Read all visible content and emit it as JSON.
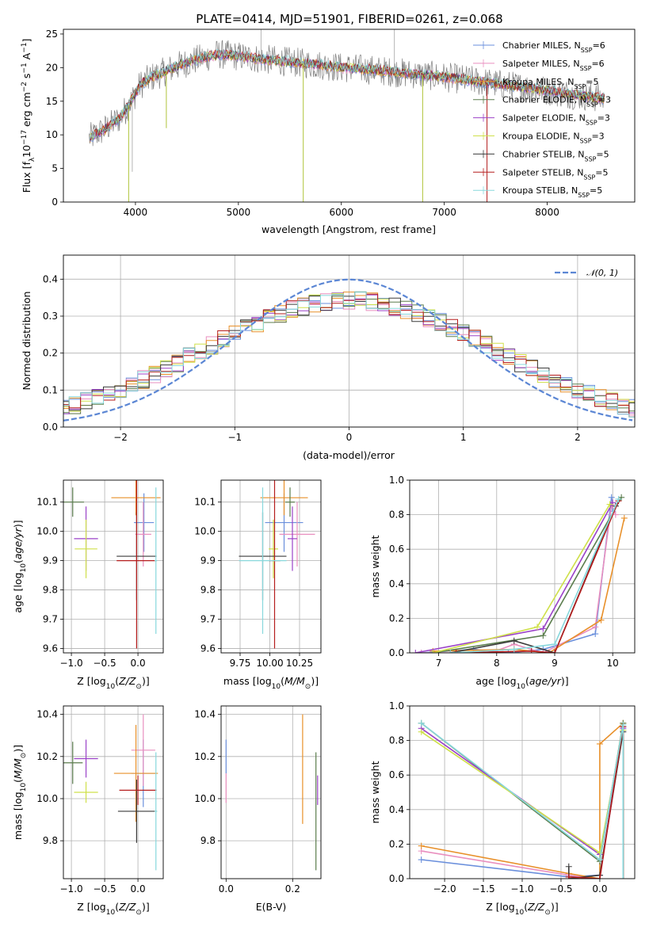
{
  "figure": {
    "title": "PLATE=0414, MJD=51901, FIBERID=0261, z=0.068"
  },
  "colors": {
    "series": [
      "#6a8fdc",
      "#e98fbf",
      "#e8902a",
      "#5b7d4d",
      "#9b42c8",
      "#cfe04a",
      "#3b3b3b",
      "#b51d1d",
      "#88d8dc"
    ],
    "gaussian": "#5b86d4",
    "grid": "#b0b0b0",
    "raw": "#7f7f7f"
  },
  "chart_data": [
    {
      "id": "spectrum",
      "type": "line",
      "xlabel": "wavelength [Angstrom, rest frame]",
      "ylabel": "Flux [f_λ10^-17 erg cm^-2 s^-1 A^-1]",
      "xlim": [
        3300,
        8850
      ],
      "ylim": [
        0,
        25.7
      ],
      "xticks": [
        4000,
        5000,
        6000,
        7000,
        8000
      ],
      "yticks": [
        0,
        5,
        10,
        15,
        20,
        25
      ],
      "legend_position": "top-right",
      "legend": [
        "Chabrier MILES, N_SSP=6",
        "Salpeter MILES, N_SSP=6",
        "Kroupa MILES, N_SSP=5",
        "Chabrier ELODIE, N_SSP=3",
        "Salpeter ELODIE, N_SSP=3",
        "Kroupa ELODIE, N_SSP=3",
        "Chabrier STELIB, N_SSP=5",
        "Salpeter STELIB, N_SSP=5",
        "Kroupa STELIB, N_SSP=5"
      ],
      "continuum": {
        "x": [
          3550,
          3700,
          3850,
          3950,
          4050,
          4150,
          4300,
          4450,
          4600,
          4800,
          5000,
          5200,
          5400,
          5600,
          5800,
          6000,
          6200,
          6400,
          6600,
          6800,
          7000,
          7200,
          7400,
          7600,
          7800,
          8000,
          8200,
          8400,
          8600
        ],
        "y": [
          9.5,
          10.8,
          12.5,
          14.8,
          17.5,
          18.5,
          19.5,
          20.5,
          21.2,
          22.0,
          21.7,
          21.3,
          21.0,
          20.7,
          20.4,
          20.0,
          19.8,
          19.5,
          19.2,
          18.9,
          18.6,
          18.2,
          17.8,
          17.4,
          17.0,
          16.6,
          16.1,
          15.7,
          15.3
        ]
      },
      "spikes": [
        {
          "x": 3934,
          "y": 0
        },
        {
          "x": 3969,
          "y": 4.5
        },
        {
          "x": 4300,
          "y": 11
        },
        {
          "x": 5220,
          "y": 25.7
        },
        {
          "x": 5630,
          "y": 0
        },
        {
          "x": 6515,
          "y": 25.7
        },
        {
          "x": 6790,
          "y": 0
        },
        {
          "x": 7415,
          "y": 0
        }
      ]
    },
    {
      "id": "residuals",
      "type": "histogram",
      "xlabel": "(data-model)/error",
      "ylabel": "Normed distribution",
      "xlim": [
        -2.5,
        2.5
      ],
      "ylim": [
        0,
        0.465
      ],
      "xticks": [
        -2,
        -1,
        0,
        1,
        2
      ],
      "yticks": [
        0.0,
        0.1,
        0.2,
        0.3,
        0.4
      ],
      "bin_width": 0.1,
      "gaussian": {
        "label": "𝒩(0, 1)",
        "mean": 0,
        "sigma": 1
      }
    },
    {
      "id": "age-vs-Z",
      "type": "scatter",
      "xlabel": "Z [log10(Z/Z☉)]",
      "ylabel": "age [log10(age/yr)]",
      "xlim": [
        -1.12,
        0.38
      ],
      "ylim": [
        9.585,
        10.175
      ],
      "xticks": [
        -1.0,
        -0.5,
        0.0
      ],
      "yticks": [
        9.6,
        9.7,
        9.8,
        9.9,
        10.0,
        10.1
      ],
      "points": [
        {
          "x": 0.09,
          "y": 10.03,
          "xerr": 0.15,
          "yerr": 0.1
        },
        {
          "x": 0.08,
          "y": 9.99,
          "xerr": 0.12,
          "yerr": 0.11
        },
        {
          "x": -0.03,
          "y": 10.115,
          "xerr": 0.37,
          "yerr": 0.06
        },
        {
          "x": -0.98,
          "y": 10.1,
          "xerr": 0.17,
          "yerr": 0.05
        },
        {
          "x": -0.78,
          "y": 9.975,
          "xerr": 0.18,
          "yerr": 0.11
        },
        {
          "x": -0.78,
          "y": 9.94,
          "xerr": 0.17,
          "yerr": 0.1
        },
        {
          "x": -0.02,
          "y": 9.915,
          "xerr": 0.3,
          "yerr": 0.15
        },
        {
          "x": -0.02,
          "y": 9.9,
          "xerr": 0.3,
          "yerr": 0.3
        },
        {
          "x": 0.27,
          "y": 9.9,
          "xerr": 0.02,
          "yerr": 0.25
        }
      ]
    },
    {
      "id": "age-vs-mass",
      "type": "scatter",
      "xlabel": "mass [log10(M/M☉)]",
      "ylabel": "",
      "xlim": [
        9.59,
        10.43
      ],
      "ylim": [
        9.585,
        10.175
      ],
      "xticks": [
        9.75,
        10.0,
        10.25
      ],
      "xticklabels": [
        "9.75",
        "10.00",
        "10.25"
      ],
      "yticks": [
        9.6,
        9.7,
        9.8,
        9.9,
        10.0,
        10.1
      ],
      "points": [
        {
          "x": 10.12,
          "y": 10.03,
          "xerr": 0.16,
          "yerr": 0.1
        },
        {
          "x": 10.23,
          "y": 9.99,
          "xerr": 0.15,
          "yerr": 0.11
        },
        {
          "x": 10.12,
          "y": 10.115,
          "xerr": 0.2,
          "yerr": 0.06
        },
        {
          "x": 10.17,
          "y": 10.1,
          "xerr": 0.04,
          "yerr": 0.05
        },
        {
          "x": 10.19,
          "y": 9.975,
          "xerr": 0.04,
          "yerr": 0.11
        },
        {
          "x": 10.03,
          "y": 9.94,
          "xerr": 0.04,
          "yerr": 0.1
        },
        {
          "x": 9.94,
          "y": 9.915,
          "xerr": 0.2,
          "yerr": 0.15
        },
        {
          "x": 10.04,
          "y": 9.9,
          "xerr": 0.05,
          "yerr": 0.3
        },
        {
          "x": 9.94,
          "y": 9.9,
          "xerr": 0.2,
          "yerr": 0.25
        }
      ]
    },
    {
      "id": "weight-vs-age",
      "type": "line",
      "xlabel": "age [log10(age/yr)]",
      "ylabel": "mass weight",
      "xlim": [
        6.5,
        10.38
      ],
      "ylim": [
        0,
        1.0
      ],
      "xticks": [
        7,
        8,
        9,
        10
      ],
      "yticks": [
        0.0,
        0.2,
        0.4,
        0.6,
        0.8,
        1.0
      ],
      "series": [
        {
          "x": [
            6.7,
            7.6,
            8.2,
            8.8,
            9.7,
            9.98,
            10.0
          ],
          "y": [
            0.0,
            0.02,
            0.0,
            0.02,
            0.11,
            0.9,
            0.82
          ]
        },
        {
          "x": [
            6.7,
            7.9,
            8.3,
            8.8,
            9.7,
            9.98,
            10.05
          ],
          "y": [
            0.0,
            0.0,
            0.05,
            0.0,
            0.15,
            0.86,
            0.8
          ]
        },
        {
          "x": [
            6.9,
            8.3,
            8.9,
            9.8,
            10.2
          ],
          "y": [
            0.01,
            0.02,
            0.0,
            0.19,
            0.78
          ]
        },
        {
          "x": [
            6.9,
            8.8,
            10.15
          ],
          "y": [
            0.0,
            0.1,
            0.9
          ]
        },
        {
          "x": [
            6.6,
            8.8,
            10.0
          ],
          "y": [
            0.0,
            0.14,
            0.87
          ]
        },
        {
          "x": [
            6.9,
            8.7,
            9.95
          ],
          "y": [
            0.0,
            0.15,
            0.86
          ]
        },
        {
          "x": [
            7.2,
            8.3,
            9.0,
            10.05
          ],
          "y": [
            0.0,
            0.07,
            0.0,
            0.85
          ]
        },
        {
          "x": [
            7.3,
            8.6,
            9.0,
            10.1
          ],
          "y": [
            0.0,
            0.01,
            0.0,
            0.88
          ]
        },
        {
          "x": [
            7.2,
            8.3,
            9.0,
            10.1
          ],
          "y": [
            0.0,
            0.02,
            0.05,
            0.89
          ]
        }
      ]
    },
    {
      "id": "mass-vs-Z",
      "type": "scatter",
      "xlabel": "Z [log10(Z/Z☉)]",
      "ylabel": "mass [log10(M/M☉)]",
      "xlim": [
        -1.12,
        0.38
      ],
      "ylim": [
        9.62,
        10.44
      ],
      "xticks": [
        -1.0,
        -0.5,
        0.0
      ],
      "yticks": [
        9.8,
        10.0,
        10.2,
        10.4
      ],
      "points": [
        {
          "x": 0.08,
          "y": 10.12,
          "xerr": 0.18,
          "yerr": 0.16
        },
        {
          "x": 0.08,
          "y": 10.23,
          "xerr": 0.18,
          "yerr": 0.17
        },
        {
          "x": -0.03,
          "y": 10.12,
          "xerr": 0.33,
          "yerr": 0.23
        },
        {
          "x": -0.98,
          "y": 10.17,
          "xerr": 0.15,
          "yerr": 0.1
        },
        {
          "x": -0.78,
          "y": 10.19,
          "xerr": 0.18,
          "yerr": 0.09
        },
        {
          "x": -0.78,
          "y": 10.03,
          "xerr": 0.18,
          "yerr": 0.05
        },
        {
          "x": -0.02,
          "y": 9.94,
          "xerr": 0.28,
          "yerr": 0.15
        },
        {
          "x": 0.0,
          "y": 10.04,
          "xerr": 0.28,
          "yerr": 0.07
        },
        {
          "x": 0.27,
          "y": 9.94,
          "xerr": 0.02,
          "yerr": 0.28
        }
      ]
    },
    {
      "id": "mass-vs-ebv",
      "type": "scatter",
      "xlabel": "E(B-V)",
      "ylabel": "",
      "xlim": [
        -0.015,
        0.285
      ],
      "ylim": [
        9.62,
        10.44
      ],
      "xticks": [
        0.0,
        0.2
      ],
      "yticks": [
        9.8,
        10.0,
        10.2,
        10.4
      ],
      "points": [
        {
          "x": 0.0,
          "y": 10.2,
          "xerr": 0,
          "yerr": 0.08
        },
        {
          "x": 0.0,
          "y": 10.05,
          "xerr": 0,
          "yerr": 0.07
        },
        {
          "x": 0.23,
          "y": 10.14,
          "xerr": 0,
          "yerr": 0.26
        },
        {
          "x": 0.27,
          "y": 9.94,
          "xerr": 0,
          "yerr": 0.28
        },
        {
          "x": 0.275,
          "y": 10.04,
          "xerr": 0,
          "yerr": 0.07
        }
      ]
    },
    {
      "id": "weight-vs-Z",
      "type": "line",
      "xlabel": "Z [log10(Z/Z☉)]",
      "ylabel": "mass weight",
      "xlim": [
        -2.45,
        0.45
      ],
      "ylim": [
        0,
        1.0
      ],
      "xticks": [
        -2.0,
        -1.5,
        -1.0,
        -0.5,
        0.0
      ],
      "yticks": [
        0.0,
        0.2,
        0.4,
        0.6,
        0.8,
        1.0
      ],
      "series": [
        {
          "x": [
            -2.3,
            -0.4,
            0.0,
            0.3,
            0.3
          ],
          "y": [
            0.11,
            0.01,
            0.02,
            0.88,
            0.0
          ]
        },
        {
          "x": [
            -2.3,
            -0.4,
            0.0,
            0.3,
            0.3
          ],
          "y": [
            0.16,
            0.02,
            0.0,
            0.86,
            0.0
          ]
        },
        {
          "x": [
            -2.3,
            -0.4,
            0.0,
            0.0,
            0.3,
            0.3
          ],
          "y": [
            0.19,
            0.03,
            0.0,
            0.78,
            0.9,
            0.0
          ]
        },
        {
          "x": [
            -2.3,
            0.0,
            0.3,
            0.3
          ],
          "y": [
            0.9,
            0.1,
            0.9,
            0.0
          ]
        },
        {
          "x": [
            -2.3,
            0.0,
            0.3,
            0.3
          ],
          "y": [
            0.87,
            0.14,
            0.87,
            0.0
          ]
        },
        {
          "x": [
            -2.3,
            0.0,
            0.3,
            0.3
          ],
          "y": [
            0.85,
            0.15,
            0.86,
            0.0
          ]
        },
        {
          "x": [
            -0.4,
            -0.4,
            0.0,
            0.3,
            0.3
          ],
          "y": [
            0.07,
            0.0,
            0.02,
            0.85,
            0.0
          ]
        },
        {
          "x": [
            -0.4,
            -0.4,
            0.0,
            0.3,
            0.3
          ],
          "y": [
            0.0,
            0.01,
            0.0,
            0.88,
            0.0
          ]
        },
        {
          "x": [
            -2.3,
            0.0,
            0.3,
            0.3
          ],
          "y": [
            0.9,
            0.11,
            0.89,
            0.0
          ]
        }
      ]
    }
  ]
}
